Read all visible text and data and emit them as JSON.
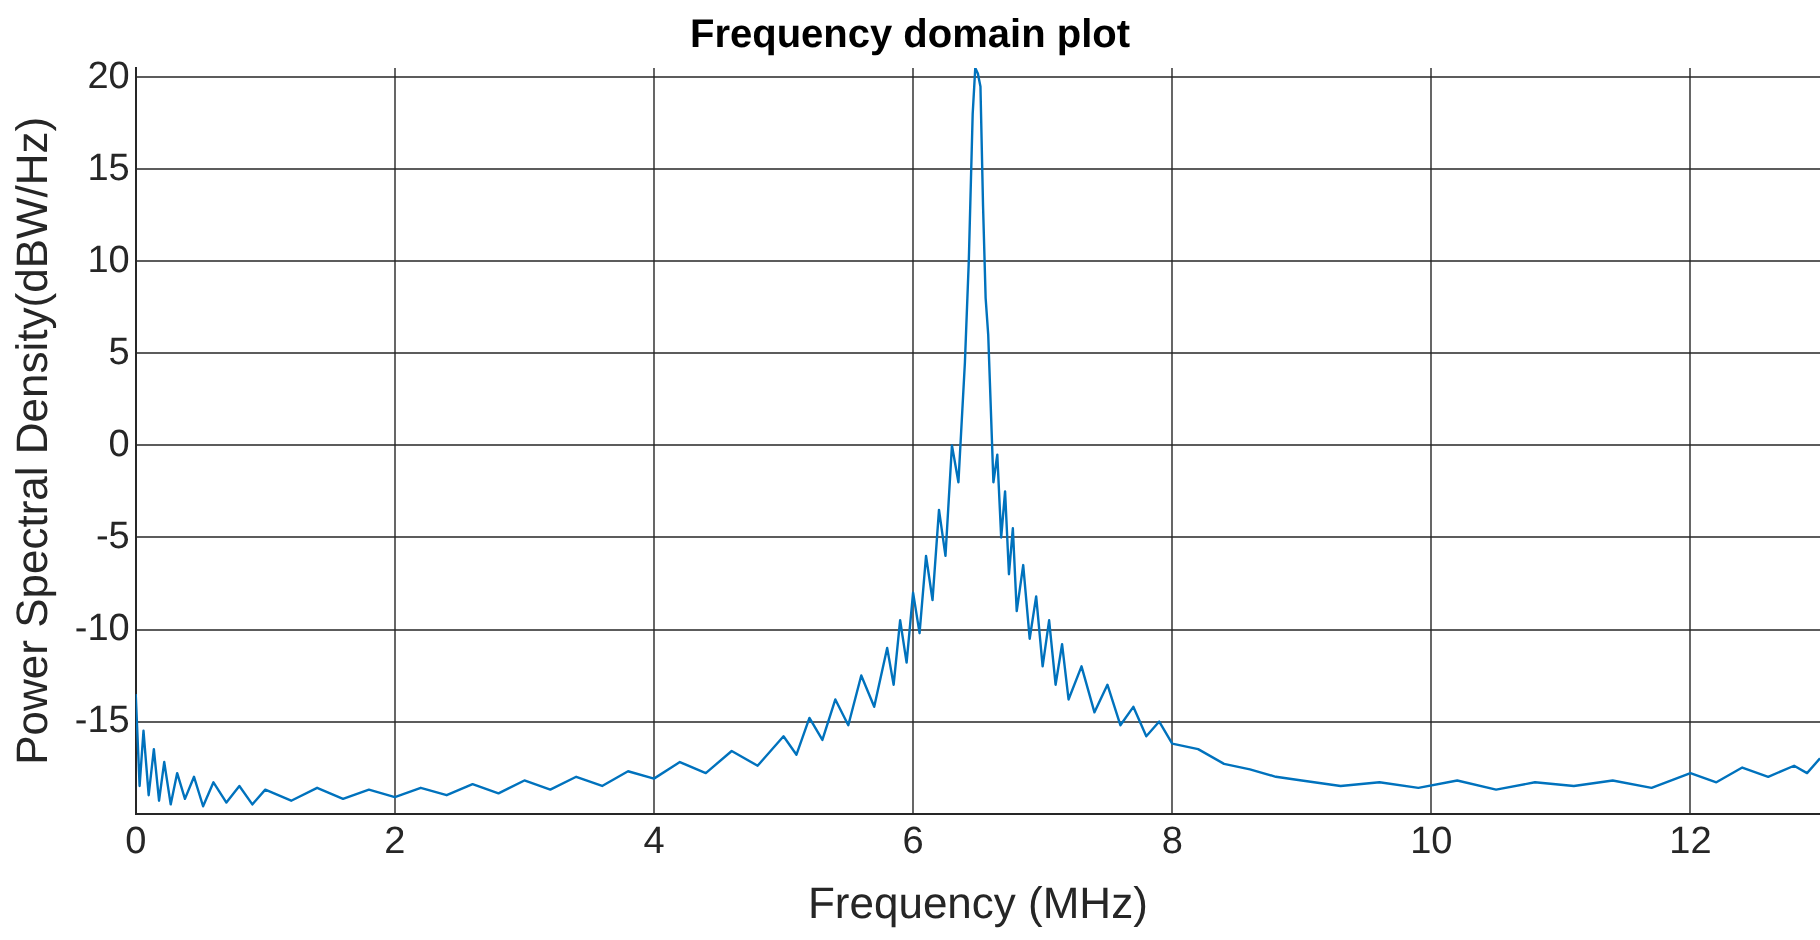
{
  "chart_data": {
    "type": "line",
    "title": "Frequency domain plot",
    "xlabel": "Frequency (MHz)",
    "ylabel": "Power Spectral Density(dBW/Hz)",
    "xlim": [
      0,
      13
    ],
    "xticks": [
      0,
      2,
      4,
      6,
      8,
      10,
      12
    ],
    "ylim": [
      -20,
      20.5
    ],
    "yticks": [
      -15,
      -10,
      -5,
      0,
      5,
      10,
      15,
      20
    ],
    "grid": true,
    "legend": false,
    "marker": "none",
    "line_style": "solid",
    "series": [
      {
        "color": "#0072bd",
        "x": [
          0,
          0.03,
          0.06,
          0.1,
          0.14,
          0.18,
          0.22,
          0.27,
          0.32,
          0.38,
          0.45,
          0.52,
          0.6,
          0.7,
          0.8,
          0.9,
          1.0,
          1.2,
          1.4,
          1.6,
          1.8,
          2.0,
          2.2,
          2.4,
          2.6,
          2.8,
          3.0,
          3.2,
          3.4,
          3.6,
          3.8,
          4.0,
          4.2,
          4.4,
          4.6,
          4.8,
          5.0,
          5.1,
          5.2,
          5.3,
          5.4,
          5.5,
          5.6,
          5.7,
          5.8,
          5.85,
          5.9,
          5.95,
          6.0,
          6.05,
          6.1,
          6.15,
          6.2,
          6.25,
          6.3,
          6.35,
          6.4,
          6.43,
          6.46,
          6.48,
          6.5,
          6.52,
          6.54,
          6.56,
          6.58,
          6.6,
          6.62,
          6.65,
          6.68,
          6.71,
          6.74,
          6.77,
          6.8,
          6.85,
          6.9,
          6.95,
          7.0,
          7.05,
          7.1,
          7.15,
          7.2,
          7.3,
          7.4,
          7.5,
          7.6,
          7.7,
          7.8,
          7.9,
          8.0,
          8.2,
          8.4,
          8.6,
          8.8,
          9.0,
          9.3,
          9.6,
          9.9,
          10.2,
          10.5,
          10.8,
          11.1,
          11.4,
          11.7,
          12.0,
          12.2,
          12.4,
          12.6,
          12.8,
          12.9,
          13.0
        ],
        "values": [
          -13.5,
          -18.5,
          -15.5,
          -19,
          -16.5,
          -19.3,
          -17.2,
          -19.5,
          -17.8,
          -19.2,
          -18,
          -19.6,
          -18.3,
          -19.4,
          -18.5,
          -19.5,
          -18.7,
          -19.3,
          -18.6,
          -19.2,
          -18.7,
          -19.1,
          -18.6,
          -19,
          -18.4,
          -18.9,
          -18.2,
          -18.7,
          -18,
          -18.5,
          -17.7,
          -18.1,
          -17.2,
          -17.8,
          -16.6,
          -17.4,
          -15.8,
          -16.8,
          -14.8,
          -16,
          -13.8,
          -15.2,
          -12.5,
          -14.2,
          -11,
          -13,
          -9.5,
          -11.8,
          -8,
          -10.2,
          -6,
          -8.4,
          -3.5,
          -6,
          0,
          -2,
          4.5,
          10,
          18,
          20.5,
          20.2,
          19.5,
          13,
          8,
          6,
          2,
          -2,
          -0.5,
          -5,
          -2.5,
          -7,
          -4.5,
          -9,
          -6.5,
          -10.5,
          -8.2,
          -12,
          -9.5,
          -13,
          -10.8,
          -13.8,
          -12,
          -14.5,
          -13,
          -15.2,
          -14.2,
          -15.8,
          -15,
          -16.2,
          -16.5,
          -17.3,
          -17.6,
          -18,
          -18.2,
          -18.5,
          -18.3,
          -18.6,
          -18.2,
          -18.7,
          -18.3,
          -18.5,
          -18.2,
          -18.6,
          -17.8,
          -18.3,
          -17.5,
          -18,
          -17.4,
          -17.8,
          -17
        ]
      }
    ]
  }
}
